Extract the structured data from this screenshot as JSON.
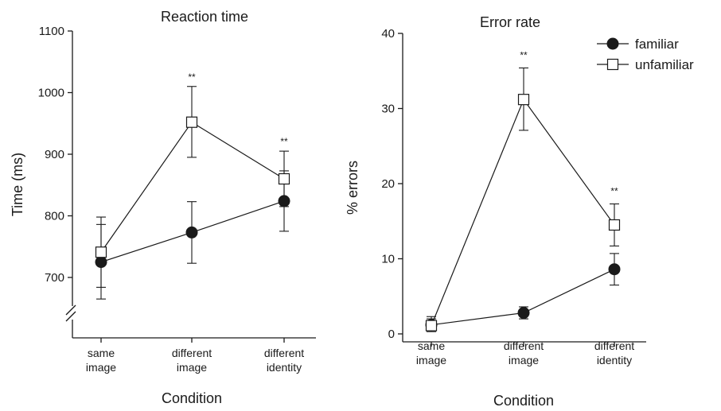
{
  "legend": {
    "familiar": "familiar",
    "unfamiliar": "unfamiliar",
    "placement": "top-right"
  },
  "chart_data": [
    {
      "type": "line",
      "title": "Reaction time",
      "xlabel": "Condition",
      "ylabel": "Time (ms)",
      "ylim": [
        700,
        1100
      ],
      "yticks": [
        "700",
        "800",
        "900",
        "1000",
        "1100"
      ],
      "axis_break": true,
      "grid": false,
      "categories": [
        [
          "same",
          "image"
        ],
        [
          "different",
          "image"
        ],
        [
          "different",
          "identity"
        ]
      ],
      "series": [
        {
          "name": "familiar",
          "marker": "filled-circle",
          "values": [
            725,
            773,
            824
          ],
          "err_low": [
            665,
            723,
            775
          ],
          "err_high": [
            786,
            823,
            873
          ]
        },
        {
          "name": "unfamiliar",
          "marker": "open-square",
          "values": [
            741,
            952,
            860
          ],
          "err_low": [
            684,
            895,
            815
          ],
          "err_high": [
            798,
            1010,
            905
          ]
        }
      ],
      "annotations": [
        {
          "category": 1,
          "text": "**"
        },
        {
          "category": 2,
          "text": "**"
        }
      ]
    },
    {
      "type": "line",
      "title": "Error rate",
      "xlabel": "Condition",
      "ylabel": "% errors",
      "ylim": [
        0,
        40
      ],
      "yticks": [
        "0",
        "10",
        "20",
        "30",
        "40"
      ],
      "axis_break": false,
      "grid": false,
      "categories": [
        [
          "same",
          "image"
        ],
        [
          "different",
          "image"
        ],
        [
          "different",
          "identity"
        ]
      ],
      "series": [
        {
          "name": "familiar",
          "marker": "filled-circle",
          "values": [
            1.2,
            2.8,
            8.6
          ],
          "err_low": [
            0.5,
            2.0,
            6.5
          ],
          "err_high": [
            2.0,
            3.6,
            10.7
          ]
        },
        {
          "name": "unfamiliar",
          "marker": "open-square",
          "values": [
            1.1,
            31.2,
            14.5
          ],
          "err_low": [
            0.3,
            27.1,
            11.7
          ],
          "err_high": [
            2.3,
            35.4,
            17.3
          ]
        }
      ],
      "annotations": [
        {
          "category": 1,
          "text": "**"
        },
        {
          "category": 2,
          "text": "**"
        }
      ]
    }
  ]
}
